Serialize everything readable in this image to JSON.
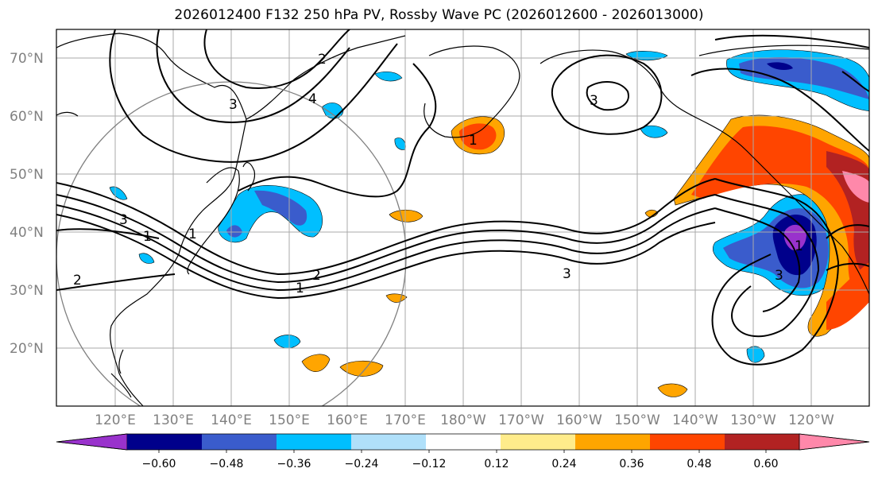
{
  "title": "2026012400 F132 250 hPa PV, Rossby Wave PC (2026012600 - 2026013000)",
  "lat_labels": [
    "70°N",
    "60°N",
    "50°N",
    "40°N",
    "30°N",
    "20°N"
  ],
  "lon_labels": [
    "120°E",
    "130°E",
    "140°E",
    "150°E",
    "160°E",
    "170°E",
    "180°W",
    "170°W",
    "160°W",
    "150°W",
    "140°W",
    "130°W",
    "120°W"
  ],
  "colorbar": {
    "tick_labels": [
      "−0.60",
      "−0.48",
      "−0.36",
      "−0.24",
      "−0.12",
      "0.12",
      "0.24",
      "0.36",
      "0.48",
      "0.60"
    ],
    "colors": [
      "#9932cc",
      "#00008b",
      "#3a5ccc",
      "#00bfff",
      "#b0e0fa",
      "#ffffff",
      "#ffec8b",
      "#ffa500",
      "#ff4500",
      "#b22222",
      "#ff88aa"
    ]
  },
  "contour_labels": {
    "a": "2",
    "b": "3",
    "c": "4",
    "d": "3",
    "e": "1",
    "f": "2",
    "g": "1",
    "h": "3",
    "i": "2",
    "j": "1",
    "k": "3",
    "l": "1",
    "m": "3",
    "n": "1"
  },
  "colors": {
    "gridline": "#aaaaaa",
    "frame": "#000000",
    "contour": "#000000"
  }
}
